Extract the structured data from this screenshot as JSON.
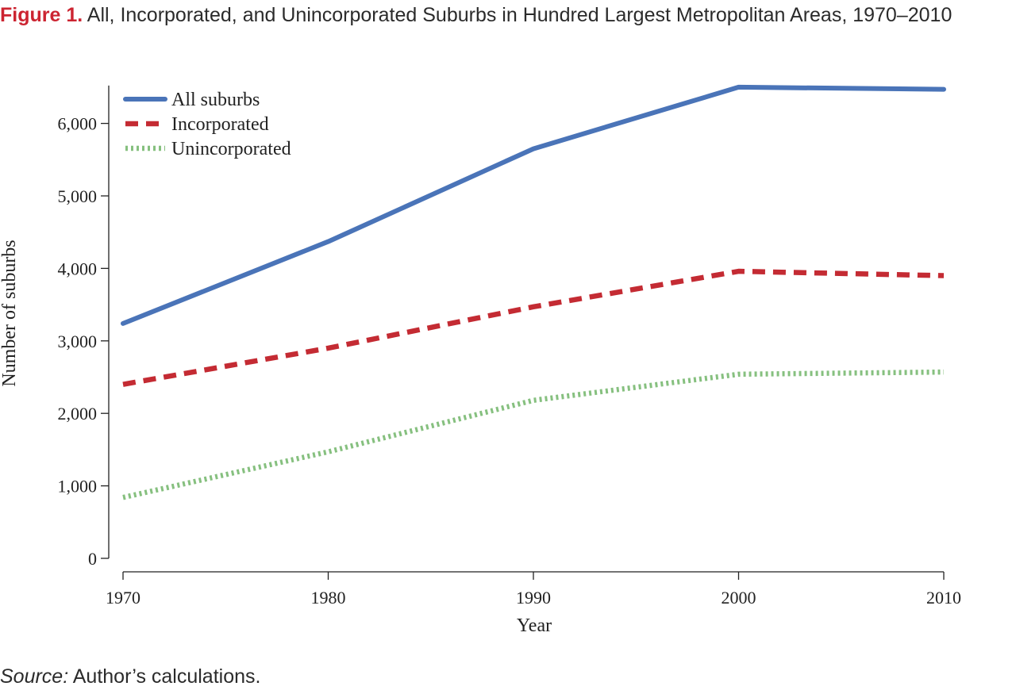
{
  "figure": {
    "label": "Figure 1.",
    "title": "All, Incorporated, and Unincorporated Suburbs in Hundred Largest Metropolitan Areas, 1970–2010"
  },
  "source": {
    "label": "Source:",
    "text": "Author’s calculations."
  },
  "chart_data": {
    "type": "line",
    "title": "All, Incorporated, and Unincorporated Suburbs in Hundred Largest Metropolitan Areas, 1970–2010",
    "xlabel": "Year",
    "ylabel": "Number of suburbs",
    "x": [
      1970,
      1980,
      1990,
      2000,
      2010
    ],
    "xticks": [
      "1970",
      "1980",
      "1990",
      "2000",
      "2010"
    ],
    "yticks": [
      {
        "value": 0,
        "label": "0"
      },
      {
        "value": 1000,
        "label": "1,000"
      },
      {
        "value": 2000,
        "label": "2,000"
      },
      {
        "value": 3000,
        "label": "3,000"
      },
      {
        "value": 4000,
        "label": "4,000"
      },
      {
        "value": 5000,
        "label": "5,000"
      },
      {
        "value": 6000,
        "label": "6,000"
      }
    ],
    "ylim": [
      0,
      6500
    ],
    "grid": false,
    "legend_position": "top-left",
    "series": [
      {
        "name": "All suburbs",
        "values": [
          3240,
          4370,
          5650,
          6500,
          6470
        ],
        "color": "#4a74b8",
        "style": "solid"
      },
      {
        "name": "Incorporated",
        "values": [
          2400,
          2900,
          3470,
          3960,
          3900
        ],
        "color": "#c42b33",
        "style": "dashed"
      },
      {
        "name": "Unincorporated",
        "values": [
          840,
          1470,
          2180,
          2540,
          2570
        ],
        "color": "#86c07f",
        "style": "dotted"
      }
    ]
  }
}
